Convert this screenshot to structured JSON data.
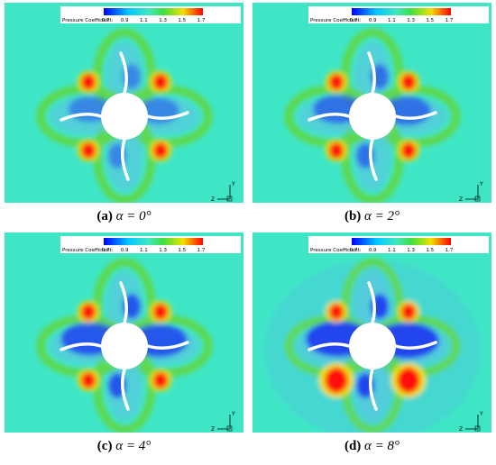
{
  "figure": {
    "panels": [
      {
        "label": "(a)",
        "caption": "α = 0°",
        "colorbar": {
          "title": "Pressure Coefficient:",
          "ticks": [
            "0.7",
            "0.9",
            "1.1",
            "1.3",
            "1.5",
            "1.7"
          ]
        },
        "axes": {
          "vertical": "Y",
          "horizontal": "Z"
        }
      },
      {
        "label": "(b)",
        "caption": "α = 2°",
        "colorbar": {
          "title": "Pressure Coefficient:",
          "ticks": [
            "0.7",
            "0.9",
            "1.1",
            "1.3",
            "1.5",
            "1.7"
          ]
        },
        "axes": {
          "vertical": "Y",
          "horizontal": "Z"
        }
      },
      {
        "label": "(c)",
        "caption": "α = 4°",
        "colorbar": {
          "title": "Pressure Coefficient:",
          "ticks": [
            "0.7",
            "0.9",
            "1.1",
            "1.3",
            "1.5",
            "1.7"
          ]
        },
        "axes": {
          "vertical": "Y",
          "horizontal": "Z"
        }
      },
      {
        "label": "(d)",
        "caption": "α = 8°",
        "colorbar": {
          "title": "Pressure Coefficient:",
          "ticks": [
            "0.7",
            "0.9",
            "1.1",
            "1.3",
            "1.5",
            "1.7"
          ]
        },
        "axes": {
          "vertical": "Y",
          "horizontal": "Z"
        }
      }
    ]
  }
}
